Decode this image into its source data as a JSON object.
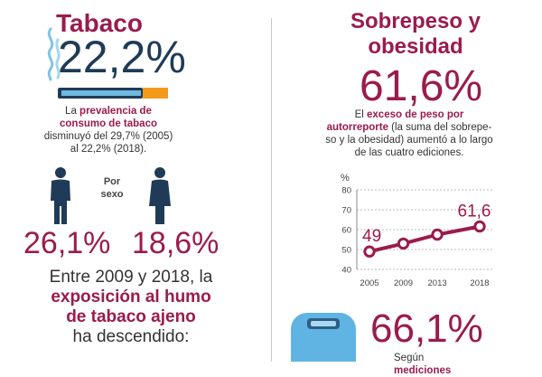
{
  "tabaco": {
    "title": "Tabaco",
    "percent": "22,2%",
    "desc": {
      "l1_bold": "prevalencia de",
      "l1_pre": "La ",
      "l2_bold": "consumo de tabaco",
      "l3": "disminuyó del 29,7% (2005)",
      "l4": "al 22,2% (2018)."
    },
    "sex_label_1": "Por",
    "sex_label_2": "sexo",
    "male_percent": "26,1%",
    "female_percent": "18,6%",
    "exposure": {
      "l1": "Entre 2009 y 2018, la",
      "l2_bold": "exposición al humo",
      "l3_bold": "de tabaco ajeno",
      "l4": "ha descendido:"
    }
  },
  "obesidad": {
    "title_1": "Sobrepeso y",
    "title_2": "obesidad",
    "percent": "61,6%",
    "desc": {
      "l1_pre": "El ",
      "l1_bold": "exceso de peso por",
      "l2_bold": "autorreporte",
      "l2_rest": " (la suma del sobrepe-",
      "l3": "so y la obesidad) aumentó a lo largo",
      "l4": "de las cuatro ediciones."
    },
    "percent_2": "66,1%",
    "bottom_pre": "Según ",
    "bottom_bold": "mediciones"
  },
  "chart_data": {
    "type": "line",
    "x": [
      2005,
      2009,
      2013,
      2018
    ],
    "categories": [
      "2005",
      "2009",
      "2013",
      "2018"
    ],
    "values": [
      49,
      53,
      57.5,
      61.6
    ],
    "ylabel": "%",
    "ylim": [
      40,
      80
    ],
    "yticks": [
      "80",
      "70",
      "60",
      "50",
      "40"
    ],
    "labels": {
      "first": "49",
      "last": "61,6"
    },
    "grid": true,
    "color": "#9b1b4d"
  },
  "colors": {
    "accent": "#9b1b4d",
    "cigarette_body": "#6fb8e0",
    "cigarette_filter": "#f39a1e",
    "person": "#1f3b57",
    "scale": "#5fb4e3"
  },
  "icons": [
    "steam-icon",
    "cigarette-icon",
    "man-icon",
    "woman-icon",
    "scale-icon"
  ]
}
